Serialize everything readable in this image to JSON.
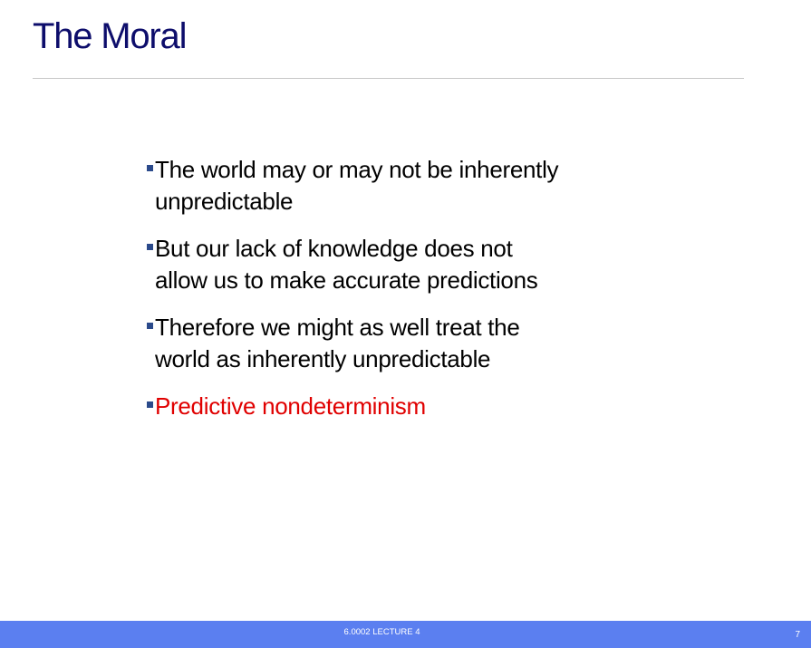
{
  "slide": {
    "title": "The Moral",
    "bullets": [
      {
        "text": "The world may or may not be inherently unpredictable",
        "highlight": false
      },
      {
        "text": "But our lack of knowledge does not allow us to make accurate predictions",
        "highlight": false
      },
      {
        "text": "Therefore we might as well treat the world as inherently unpredictable",
        "highlight": false
      },
      {
        "text": "Predictive nondeterminism",
        "highlight": true
      }
    ]
  },
  "footer": {
    "course_label": "6.0002 LECTURE 4",
    "slide_number": "7"
  },
  "colors": {
    "title": "#0d0d6b",
    "bullet_marker": "#2b4a8b",
    "highlight_text": "#e00000",
    "footer_bar": "#5b7ff0"
  }
}
